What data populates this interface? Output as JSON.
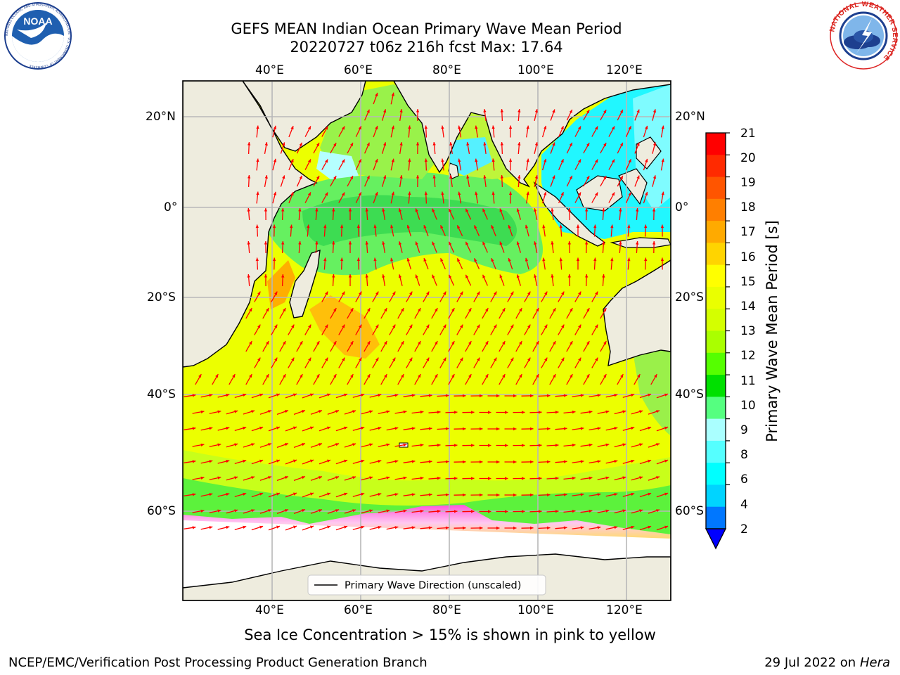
{
  "header": {
    "title_line1": "GEFS MEAN Indian Ocean Primary Wave Mean Period",
    "title_line2": "20220727 t06z 216h fcst   Max: 17.64"
  },
  "logos": {
    "noaa": {
      "text": "NOAA",
      "ring_text": "NATIONAL OCEANIC AND ATMOSPHERIC ADMINISTRATION · U.S. DEPARTMENT OF COMMERCE",
      "icon": "noaa-logo-icon"
    },
    "nws": {
      "ring_text": "NATIONAL WEATHER SERVICE",
      "icon": "nws-logo-icon"
    }
  },
  "map": {
    "lon_ticks": [
      "40°E",
      "60°E",
      "80°E",
      "100°E",
      "120°E"
    ],
    "lat_ticks": [
      "20°N",
      "0°",
      "20°S",
      "40°S",
      "60°S"
    ],
    "legend_label": "Primary Wave Direction (unscaled)",
    "colors": {
      "land": "#eeecde",
      "ice_free_polar": "#ffffff",
      "grid": "#b8b8b8",
      "arrow": "#ff0000"
    }
  },
  "colorbar": {
    "label": "Primary Wave Mean Period [s]",
    "ticks": [
      "21",
      "20",
      "19",
      "18",
      "17",
      "16",
      "15",
      "14",
      "13",
      "12",
      "11",
      "10",
      "9",
      "8",
      "6",
      "4",
      "2"
    ],
    "colors": [
      "#ff0000",
      "#ff2a00",
      "#ff5500",
      "#ff7f00",
      "#ffaa00",
      "#ffd400",
      "#ffff00",
      "#eaff00",
      "#d4ff00",
      "#aaff00",
      "#55ff00",
      "#00e000",
      "#55ff80",
      "#aaffff",
      "#55ffff",
      "#00ffff",
      "#00d4ff",
      "#0077ff"
    ],
    "under_color": "#0000ff"
  },
  "footer": {
    "caption": "Sea Ice Concentration > 15% is shown in pink to yellow",
    "credit": "NCEP/EMC/Verification Post Processing Product Generation Branch",
    "date": "29 Jul 2022 on",
    "machine": "Hera"
  }
}
